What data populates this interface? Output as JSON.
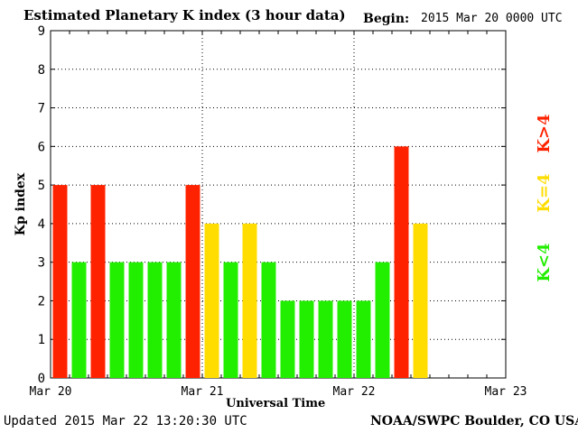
{
  "header": {
    "title": "Estimated Planetary K index (3 hour data)",
    "begin_label": "Begin:",
    "begin_value": "2015 Mar 20 0000 UTC"
  },
  "footer": {
    "updated": "Updated 2015 Mar 22 13:20:30 UTC",
    "credit": "NOAA/SWPC Boulder, CO USA"
  },
  "colors": {
    "high": "#ff2200",
    "moderate": "#ffdd00",
    "low": "#22ee00",
    "grid": "#000000",
    "axis": "#000000"
  },
  "chart_data": {
    "type": "bar",
    "title": "Estimated Planetary K index (3 hour data)",
    "xlabel": "Universal Time",
    "ylabel": "Kp index",
    "ylim": [
      0,
      9
    ],
    "y_ticks": [
      "0",
      "1",
      "2",
      "3",
      "4",
      "5",
      "6",
      "7",
      "8",
      "9"
    ],
    "x_ticks": [
      "Mar 20",
      "Mar 21",
      "Mar 22",
      "Mar 23"
    ],
    "interval_hours": 3,
    "total_intervals": 24,
    "grid": true,
    "legend": {
      "placement": "right",
      "items": [
        {
          "label": "K>4",
          "color": "#ff2200"
        },
        {
          "label": "K=4",
          "color": "#ffdd00"
        },
        {
          "label": "K<4",
          "color": "#22ee00"
        }
      ]
    },
    "values": [
      5,
      3,
      5,
      3,
      3,
      3,
      3,
      5,
      4,
      3,
      4,
      3,
      2,
      2,
      2,
      2,
      2,
      3,
      6,
      4
    ]
  }
}
